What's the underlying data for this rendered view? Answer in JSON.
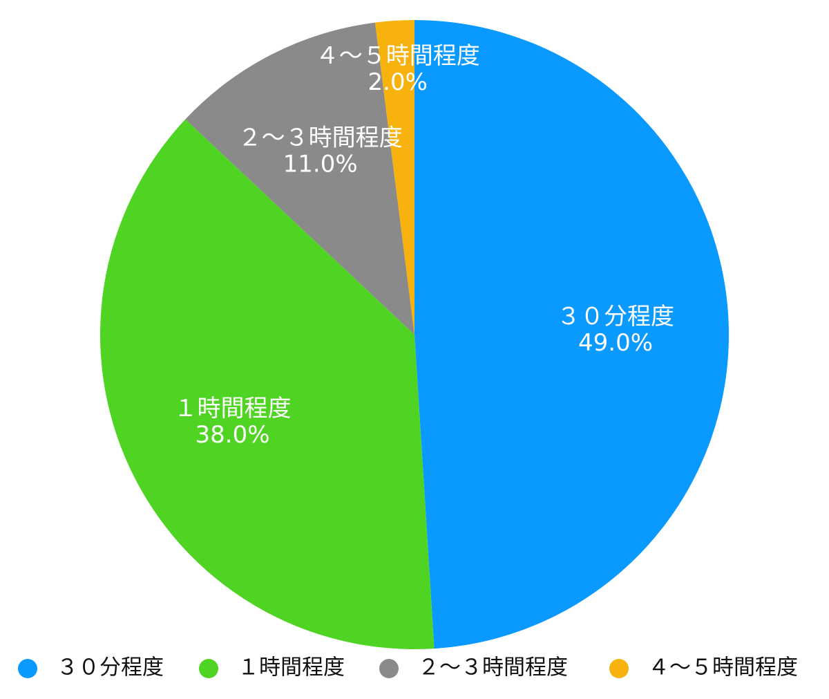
{
  "chart_data": {
    "type": "pie",
    "title": "",
    "start": "top",
    "direction": "clockwise",
    "slices": [
      {
        "name": "３０分程度",
        "value": 49.0,
        "label": "49.0%",
        "color": "#0a99ff"
      },
      {
        "name": "１時間程度",
        "value": 38.0,
        "label": "38.0%",
        "color": "#50d424"
      },
      {
        "name": "２～３時間程度",
        "value": 11.0,
        "label": "11.0%",
        "color": "#8a8a8a"
      },
      {
        "name": "４～５時間程度",
        "value": 2.0,
        "label": "2.0%",
        "color": "#f7b20d"
      }
    ],
    "legend": {
      "position": "bottom",
      "entries": [
        "３０分程度",
        "１時間程度",
        "２～３時間程度",
        "４～５時間程度"
      ]
    }
  }
}
